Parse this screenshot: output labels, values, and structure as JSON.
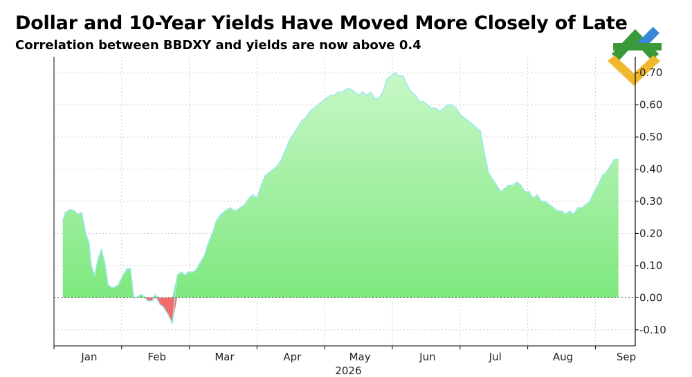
{
  "header": {
    "title": "Dollar and 10-Year Yields Have Moved More Closely of Late",
    "subtitle": "Correlation between BBDXY and yields are now above 0.4"
  },
  "logo": {
    "icon": "brand-logo-icon",
    "colors": [
      "#3a9a3a",
      "#3a86d8",
      "#f0b92d"
    ]
  },
  "chart_data": {
    "type": "area",
    "title": "Dollar and 10-Year Yields Have Moved More Closely of Late",
    "subtitle": "Correlation between BBDXY and yields are now above 0.4",
    "xlabel": "2026",
    "ylabel": "",
    "x_ticks": [
      "Jan",
      "Feb",
      "Mar",
      "Apr",
      "May",
      "Jun",
      "Jul",
      "Aug",
      "Sep"
    ],
    "x_year_label": "2026",
    "y_ticks": [
      -0.1,
      0.0,
      0.1,
      0.2,
      0.3,
      0.4,
      0.5,
      0.6,
      0.7
    ],
    "y_tick_labels": [
      "-0.10",
      "0.00",
      "0.10",
      "0.20",
      "0.30",
      "0.40",
      "0.50",
      "0.60",
      "0.70"
    ],
    "ylim": [
      -0.15,
      0.75
    ],
    "xlim_months": [
      -0.5,
      7.95
    ],
    "axis_position": "right",
    "grid": true,
    "legend": "none",
    "colors": {
      "positive_fill": "#7ee87e",
      "positive_fill_top": "#c8f7c8",
      "negative_fill": "#f26b6b",
      "line": "#9ee8ee"
    },
    "series": [
      {
        "x_month": [
          -0.37,
          -0.33,
          -0.26,
          -0.2,
          -0.15,
          -0.09,
          -0.03,
          0.02,
          0.05,
          0.1,
          0.15,
          0.2,
          0.25,
          0.3,
          0.37,
          0.45,
          0.52,
          0.58,
          0.63,
          0.68,
          0.72,
          0.78,
          0.83,
          0.88,
          0.95,
          1.0,
          1.06,
          1.12,
          1.18,
          1.25,
          1.32,
          1.38,
          1.44,
          1.48,
          1.52,
          1.56,
          1.61,
          1.66,
          1.72,
          1.78,
          1.84,
          1.9,
          1.97,
          2.03,
          2.1,
          2.18,
          2.25,
          2.32,
          2.38,
          2.44,
          2.5,
          2.56,
          2.62,
          2.68,
          2.74,
          2.8,
          2.86,
          2.92,
          2.98,
          3.04,
          3.1,
          3.16,
          3.22,
          3.28,
          3.34,
          3.4,
          3.46,
          3.52,
          3.58,
          3.64,
          3.7,
          3.76,
          3.82,
          3.88,
          3.94,
          4.0,
          4.06,
          4.12,
          4.18,
          4.24,
          4.3,
          4.36,
          4.42,
          4.48,
          4.54,
          4.6,
          4.66,
          4.72,
          4.78,
          4.84,
          4.9,
          4.96,
          5.02,
          5.08,
          5.14,
          5.2,
          5.26,
          5.32,
          5.38,
          5.44,
          5.5,
          5.56,
          5.62,
          5.68,
          5.74,
          5.8,
          5.86,
          5.92,
          5.98,
          6.04,
          6.1,
          6.16,
          6.22,
          6.28,
          6.34,
          6.4,
          6.46,
          6.52,
          6.58,
          6.64,
          6.7,
          6.76,
          6.82,
          6.88,
          6.94,
          7.0,
          7.06,
          7.12,
          7.18,
          7.24,
          7.3,
          7.36,
          7.42,
          7.48,
          7.54,
          7.6,
          7.66,
          7.72,
          7.78,
          7.84
        ],
        "values": [
          0.24,
          0.265,
          0.275,
          0.27,
          0.26,
          0.265,
          0.2,
          0.17,
          0.1,
          0.07,
          0.12,
          0.15,
          0.11,
          0.04,
          0.03,
          0.04,
          0.07,
          0.09,
          0.09,
          0.0,
          0.0,
          0.01,
          0.005,
          -0.01,
          -0.01,
          0.01,
          -0.02,
          -0.03,
          -0.05,
          -0.08,
          0.07,
          0.08,
          0.07,
          0.08,
          0.08,
          0.08,
          0.09,
          0.11,
          0.13,
          0.17,
          0.2,
          0.24,
          0.26,
          0.27,
          0.28,
          0.27,
          0.28,
          0.29,
          0.31,
          0.32,
          0.31,
          0.35,
          0.38,
          0.39,
          0.4,
          0.41,
          0.43,
          0.46,
          0.49,
          0.51,
          0.53,
          0.55,
          0.56,
          0.58,
          0.59,
          0.6,
          0.61,
          0.62,
          0.63,
          0.63,
          0.64,
          0.64,
          0.65,
          0.65,
          0.64,
          0.63,
          0.64,
          0.63,
          0.64,
          0.62,
          0.62,
          0.64,
          0.68,
          0.69,
          0.7,
          0.69,
          0.69,
          0.66,
          0.64,
          0.63,
          0.61,
          0.61,
          0.6,
          0.59,
          0.59,
          0.58,
          0.59,
          0.6,
          0.6,
          0.59,
          0.57,
          0.56,
          0.55,
          0.54,
          0.53,
          0.52,
          0.45,
          0.39,
          0.37,
          0.35,
          0.33,
          0.34,
          0.35,
          0.35,
          0.36,
          0.35,
          0.33,
          0.33,
          0.31,
          0.32,
          0.3,
          0.3,
          0.29,
          0.28,
          0.27,
          0.27,
          0.26,
          0.27,
          0.26,
          0.28,
          0.28,
          0.29,
          0.3,
          0.33,
          0.35,
          0.38,
          0.39,
          0.41,
          0.43,
          0.43
        ]
      }
    ]
  }
}
